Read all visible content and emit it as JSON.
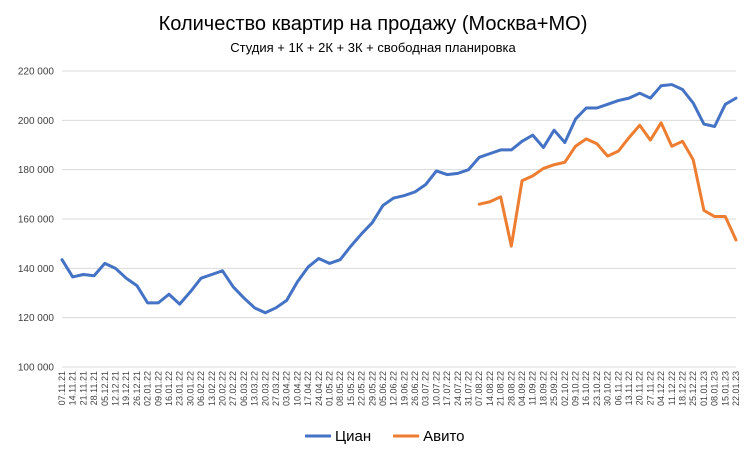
{
  "chart_data": {
    "type": "line",
    "title": "Количество квартир на продажу (Москва+МО)",
    "subtitle": "Студия + 1К + 2К + 3К + свободная планировка",
    "ylim": [
      100000,
      220000
    ],
    "yticks": [
      100000,
      120000,
      140000,
      160000,
      180000,
      200000,
      220000
    ],
    "ytick_labels": [
      "100 000",
      "120 000",
      "140 000",
      "160 000",
      "180 000",
      "200 000",
      "220 000"
    ],
    "grid": true,
    "legend_position": "bottom",
    "categories": [
      "07.11.21",
      "14.11.21",
      "21.11.21",
      "28.11.21",
      "05.12.21",
      "12.12.21",
      "19.12.21",
      "26.12.21",
      "02.01.22",
      "09.01.22",
      "16.01.22",
      "23.01.22",
      "30.01.22",
      "06.02.22",
      "13.02.22",
      "20.02.22",
      "27.02.22",
      "06.03.22",
      "13.03.22",
      "20.03.22",
      "27.03.22",
      "03.04.22",
      "10.04.22",
      "17.04.22",
      "24.04.22",
      "01.05.22",
      "08.05.22",
      "15.05.22",
      "22.05.22",
      "29.05.22",
      "05.06.22",
      "12.06.22",
      "19.06.22",
      "26.06.22",
      "03.07.22",
      "10.07.22",
      "17.07.22",
      "24.07.22",
      "31.07.22",
      "07.08.22",
      "14.08.22",
      "21.08.22",
      "28.08.22",
      "04.09.22",
      "11.09.22",
      "18.09.22",
      "25.09.22",
      "02.10.22",
      "09.10.22",
      "16.10.22",
      "23.10.22",
      "30.10.22",
      "06.11.22",
      "13.11.22",
      "20.11.22",
      "27.11.22",
      "04.12.22",
      "11.12.22",
      "18.12.22",
      "25.12.22",
      "01.01.23",
      "08.01.23",
      "15.01.23",
      "22.01.23"
    ],
    "series": [
      {
        "name": "Циан",
        "color": "#4472c4",
        "values": [
          143500,
          136500,
          137500,
          137000,
          142000,
          140000,
          136000,
          133000,
          126000,
          126000,
          129500,
          125500,
          130500,
          136000,
          137500,
          139000,
          132500,
          128000,
          124000,
          122000,
          124000,
          127000,
          134500,
          140500,
          144000,
          142000,
          143500,
          149000,
          154000,
          158500,
          165500,
          168500,
          169500,
          171000,
          174000,
          179500,
          178000,
          178500,
          180000,
          185000,
          186500,
          188000,
          188000,
          191500,
          194000,
          189000,
          196000,
          191000,
          200500,
          205000,
          205000,
          206500,
          208000,
          209000,
          211000,
          209000,
          214000,
          214500,
          212500,
          207000,
          198500,
          197500,
          206500,
          209000
        ]
      },
      {
        "name": "Авито",
        "color": "#ed7d31",
        "values": [
          null,
          null,
          null,
          null,
          null,
          null,
          null,
          null,
          null,
          null,
          null,
          null,
          null,
          null,
          null,
          null,
          null,
          null,
          null,
          null,
          null,
          null,
          null,
          null,
          null,
          null,
          null,
          null,
          null,
          null,
          null,
          null,
          null,
          null,
          null,
          null,
          null,
          null,
          null,
          166000,
          167000,
          169000,
          149000,
          175500,
          177500,
          180500,
          182000,
          183000,
          189500,
          192500,
          190500,
          185500,
          187500,
          193000,
          198000,
          192000,
          199000,
          189500,
          191500,
          184000,
          163500,
          161000,
          161000,
          151500
        ]
      }
    ]
  }
}
